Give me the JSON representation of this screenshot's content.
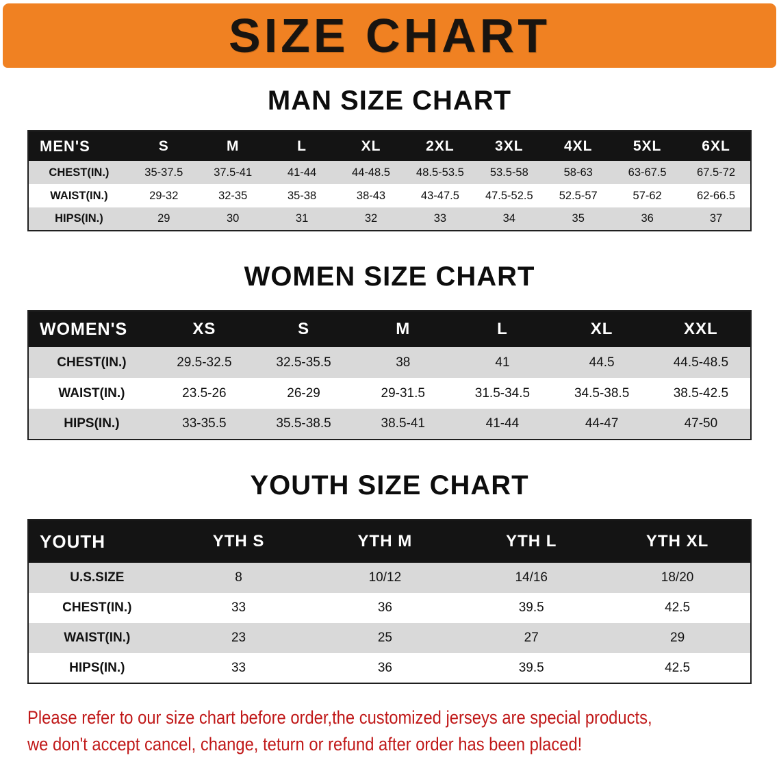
{
  "banner": {
    "title": "SIZE CHART"
  },
  "colors": {
    "banner_bg": "#F08122",
    "header_bg": "#141414",
    "header_text": "#FFFFFF",
    "row_alt_bg": "#D9D9D9",
    "notice_text": "#C01818",
    "text": "#111111"
  },
  "chart_data": [
    {
      "type": "table",
      "id": "men",
      "title": "MAN SIZE CHART",
      "columns": [
        "MEN'S",
        "S",
        "M",
        "L",
        "XL",
        "2XL",
        "3XL",
        "4XL",
        "5XL",
        "6XL"
      ],
      "rows": [
        [
          "CHEST(IN.)",
          "35-37.5",
          "37.5-41",
          "41-44",
          "44-48.5",
          "48.5-53.5",
          "53.5-58",
          "58-63",
          "63-67.5",
          "67.5-72"
        ],
        [
          "WAIST(IN.)",
          "29-32",
          "32-35",
          "35-38",
          "38-43",
          "43-47.5",
          "47.5-52.5",
          "52.5-57",
          "57-62",
          "62-66.5"
        ],
        [
          "HIPS(IN.)",
          "29",
          "30",
          "31",
          "32",
          "33",
          "34",
          "35",
          "36",
          "37"
        ]
      ]
    },
    {
      "type": "table",
      "id": "women",
      "title": "WOMEN SIZE CHART",
      "columns": [
        "WOMEN'S",
        "XS",
        "S",
        "M",
        "L",
        "XL",
        "XXL"
      ],
      "rows": [
        [
          "CHEST(IN.)",
          "29.5-32.5",
          "32.5-35.5",
          "38",
          "41",
          "44.5",
          "44.5-48.5"
        ],
        [
          "WAIST(IN.)",
          "23.5-26",
          "26-29",
          "29-31.5",
          "31.5-34.5",
          "34.5-38.5",
          "38.5-42.5"
        ],
        [
          "HIPS(IN.)",
          "33-35.5",
          "35.5-38.5",
          "38.5-41",
          "41-44",
          "44-47",
          "47-50"
        ]
      ]
    },
    {
      "type": "table",
      "id": "youth",
      "title": "YOUTH SIZE CHART",
      "columns": [
        "YOUTH",
        "YTH S",
        "YTH M",
        "YTH L",
        "YTH XL"
      ],
      "rows": [
        [
          "U.S.SIZE",
          "8",
          "10/12",
          "14/16",
          "18/20"
        ],
        [
          "CHEST(IN.)",
          "33",
          "36",
          "39.5",
          "42.5"
        ],
        [
          "WAIST(IN.)",
          "23",
          "25",
          "27",
          "29"
        ],
        [
          "HIPS(IN.)",
          "33",
          "36",
          "39.5",
          "42.5"
        ]
      ]
    }
  ],
  "footer": {
    "lines": [
      "Please refer to our size chart before order,the customized jerseys are special products,",
      "we don't accept cancel, change, teturn or refund after order has been placed!"
    ]
  }
}
